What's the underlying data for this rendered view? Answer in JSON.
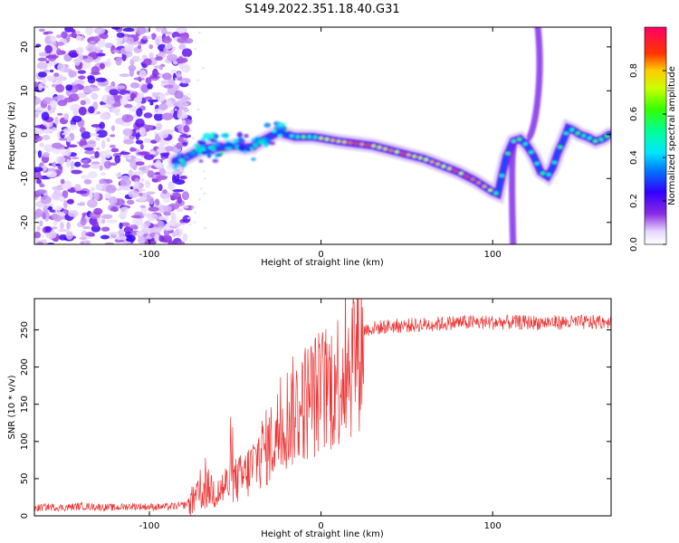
{
  "figure": {
    "title": "S149.2022.351.18.40.G31"
  },
  "chart_data": [
    {
      "type": "heatmap",
      "title": "S149.2022.351.18.40.G31",
      "xlabel": "Height of straight line (km)",
      "ylabel": "Frequency (Hz)",
      "xlim": [
        -167,
        169
      ],
      "ylim": [
        -25,
        24.5
      ],
      "x_ticks": [
        -100,
        0,
        100
      ],
      "x_tick_labels": [
        "-100",
        "0",
        "100"
      ],
      "y_ticks": [
        -20,
        -10,
        0,
        10,
        20
      ],
      "y_tick_labels": [
        "-20",
        "-10",
        "0",
        "10",
        "20"
      ],
      "colorbar": {
        "label": "Normalized spectral amplitude",
        "range": [
          0,
          1
        ],
        "ticks": [
          0.0,
          0.2,
          0.4,
          0.6,
          0.8
        ],
        "tick_labels": [
          "0.0",
          "0.2",
          "0.4",
          "0.6",
          "0.8"
        ],
        "colormap": "rainbow-purple-to-red"
      },
      "frequency_track": [
        [
          -85,
          -6.0
        ],
        [
          -80,
          -5.5
        ],
        [
          -75,
          -4.5
        ],
        [
          -70,
          -3.5
        ],
        [
          -65,
          -3.0
        ],
        [
          -60,
          -3.0
        ],
        [
          -55,
          -2.8
        ],
        [
          -50,
          -2.5
        ],
        [
          -45,
          -3.0
        ],
        [
          -40,
          -2.8
        ],
        [
          -35,
          -1.5
        ],
        [
          -30,
          -0.5
        ],
        [
          -25,
          0.5
        ],
        [
          -20,
          0.0
        ],
        [
          -15,
          -0.5
        ],
        [
          -10,
          -0.5
        ],
        [
          -5,
          -0.5
        ],
        [
          0,
          -0.8
        ],
        [
          10,
          -1.5
        ],
        [
          20,
          -2.0
        ],
        [
          30,
          -2.5
        ],
        [
          40,
          -3.5
        ],
        [
          50,
          -4.5
        ],
        [
          60,
          -5.5
        ],
        [
          70,
          -7.0
        ],
        [
          80,
          -8.5
        ],
        [
          90,
          -10.5
        ],
        [
          100,
          -13.0
        ],
        [
          103,
          -13.5
        ],
        [
          105,
          -10.0
        ],
        [
          108,
          -5.0
        ],
        [
          112,
          -1.5
        ],
        [
          116,
          -1.0
        ],
        [
          120,
          -2.5
        ],
        [
          124,
          -5.0
        ],
        [
          128,
          -8.5
        ],
        [
          132,
          -9.5
        ],
        [
          135,
          -7.5
        ],
        [
          138,
          -4.0
        ],
        [
          141,
          -1.5
        ],
        [
          144,
          1.5
        ],
        [
          147,
          1.0
        ],
        [
          151,
          0.0
        ],
        [
          155,
          -0.5
        ],
        [
          160,
          -1.5
        ],
        [
          164,
          -1.0
        ],
        [
          168,
          0.0
        ]
      ],
      "noise_region_x": [
        -167,
        -83
      ]
    },
    {
      "type": "line",
      "xlabel": "Height of straight line (km)",
      "ylabel": "SNR (10 * v/v)",
      "xlim": [
        -167,
        169
      ],
      "ylim": [
        0,
        292
      ],
      "x_ticks": [
        -100,
        0,
        100
      ],
      "x_tick_labels": [
        "-100",
        "0",
        "100"
      ],
      "y_ticks": [
        0,
        50,
        100,
        150,
        200,
        250
      ],
      "y_tick_labels": [
        "0",
        "50",
        "100",
        "150",
        "200",
        "250"
      ],
      "line_color": "#ee3333",
      "series": [
        {
          "values": [
            [
              -167,
              10
            ],
            [
              -160,
              12
            ],
            [
              -150,
              11
            ],
            [
              -140,
              13
            ],
            [
              -130,
              12
            ],
            [
              -120,
              11
            ],
            [
              -110,
              13
            ],
            [
              -100,
              12
            ],
            [
              -90,
              12
            ],
            [
              -80,
              14
            ],
            [
              -75,
              20
            ],
            [
              -70,
              32
            ],
            [
              -65,
              40
            ],
            [
              -60,
              35
            ],
            [
              -55,
              45
            ],
            [
              -50,
              50
            ],
            [
              -45,
              55
            ],
            [
              -40,
              70
            ],
            [
              -35,
              90
            ],
            [
              -30,
              100
            ],
            [
              -25,
              120
            ],
            [
              -20,
              140
            ],
            [
              -15,
              150
            ],
            [
              -10,
              160
            ],
            [
              -5,
              170
            ],
            [
              0,
              175
            ],
            [
              5,
              185
            ],
            [
              10,
              195
            ],
            [
              15,
              210
            ],
            [
              20,
              235
            ],
            [
              25,
              250
            ],
            [
              30,
              252
            ],
            [
              40,
              255
            ],
            [
              60,
              257
            ],
            [
              80,
              260
            ],
            [
              100,
              260
            ],
            [
              120,
              260
            ],
            [
              140,
              260
            ],
            [
              160,
              260
            ],
            [
              169,
              262
            ]
          ]
        }
      ]
    }
  ]
}
